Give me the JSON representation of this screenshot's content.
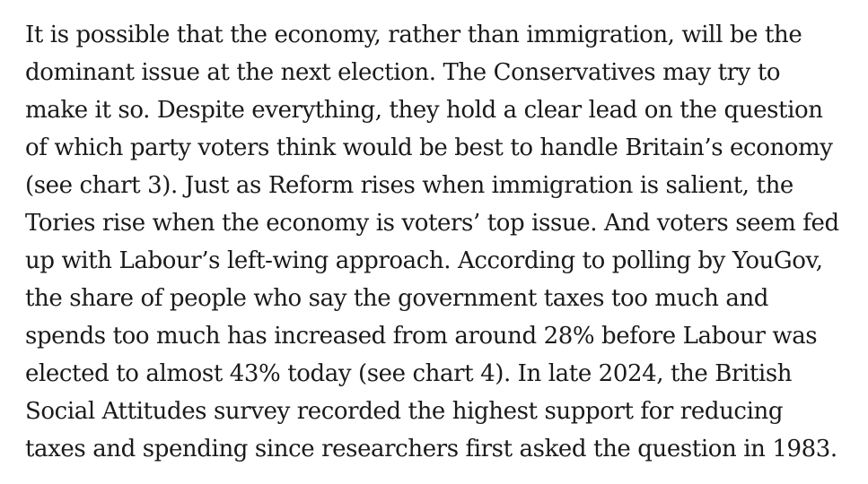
{
  "article": {
    "lines": [
      "It is possible that the economy, rather than immigration, will be the",
      "dominant issue at the next election. The Conservatives may try to",
      "make it so. Despite everything, they hold a clear lead on the question",
      "of which party voters think would be best to handle Britain’s economy",
      "(see chart 3). Just as Reform rises when immigration is salient, the",
      "Tories rise when the economy is voters’ top issue. And voters seem fed",
      "up with Labour’s left-wing approach. According to polling by YouGov,",
      "the share of people who say the government taxes too much and",
      "spends too much has increased from around 28% before Labour was",
      "elected to almost 43% today (see chart 4). In late 2024, the British",
      "Social Attitudes survey recorded the highest support for reducing",
      "taxes and spending since researchers first asked the question in 1983."
    ]
  }
}
